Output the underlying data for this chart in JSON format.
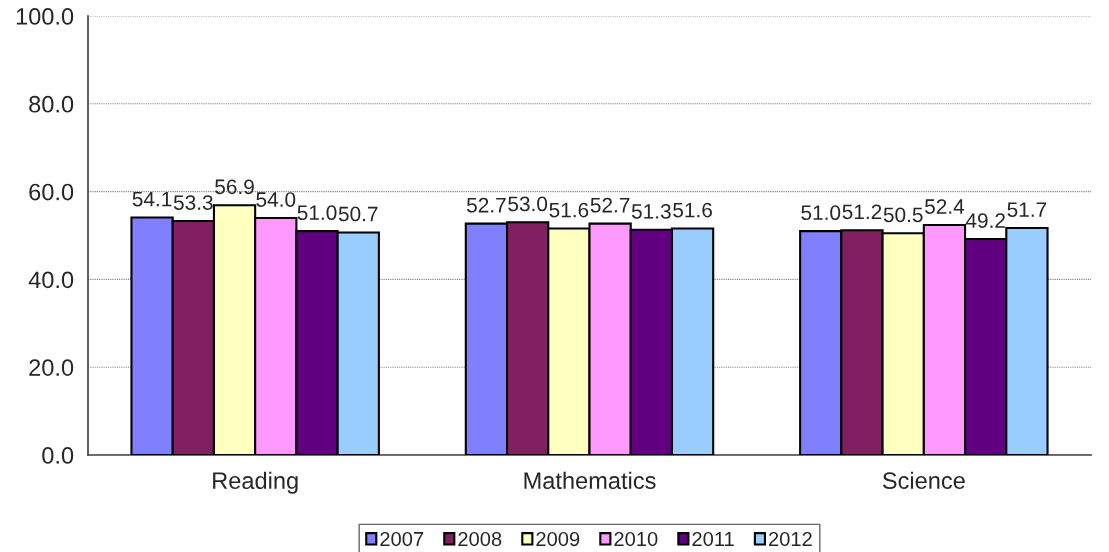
{
  "chart_data": {
    "type": "bar",
    "categories": [
      "Reading",
      "Mathematics",
      "Science"
    ],
    "series": [
      {
        "name": "2007",
        "color": "#8080ff",
        "values": [
          54.1,
          52.7,
          51.0
        ],
        "value_labels": [
          "54.1",
          "52.7",
          "51.0"
        ]
      },
      {
        "name": "2008",
        "color": "#802060",
        "values": [
          53.3,
          53.0,
          51.2
        ],
        "value_labels": [
          "53.3",
          "53.0",
          "51.2"
        ]
      },
      {
        "name": "2009",
        "color": "#ffffc0",
        "values": [
          56.9,
          51.6,
          50.5
        ],
        "value_labels": [
          "56.9",
          "51.6",
          "50.5"
        ]
      },
      {
        "name": "2010",
        "color": "#ff99ff",
        "values": [
          54.0,
          52.7,
          52.4
        ],
        "value_labels": [
          "54.0",
          "52.7",
          "52.4"
        ]
      },
      {
        "name": "2011",
        "color": "#600080",
        "values": [
          51.0,
          51.3,
          49.2
        ],
        "value_labels": [
          "51.0",
          "51.3",
          "49.2"
        ]
      },
      {
        "name": "2012",
        "color": "#99ccff",
        "values": [
          50.7,
          51.6,
          51.7
        ],
        "value_labels": [
          "50.7",
          "51.6",
          "51.7"
        ]
      }
    ],
    "ylim": [
      0,
      100
    ],
    "yticks": [
      {
        "value": 0,
        "label": "0.0"
      },
      {
        "value": 20,
        "label": "20.0"
      },
      {
        "value": 40,
        "label": "40.0"
      },
      {
        "value": 60,
        "label": "60.0"
      },
      {
        "value": 80,
        "label": "80.0"
      },
      {
        "value": 100,
        "label": "100.0"
      }
    ],
    "grid": "y",
    "legend": "bottom"
  }
}
